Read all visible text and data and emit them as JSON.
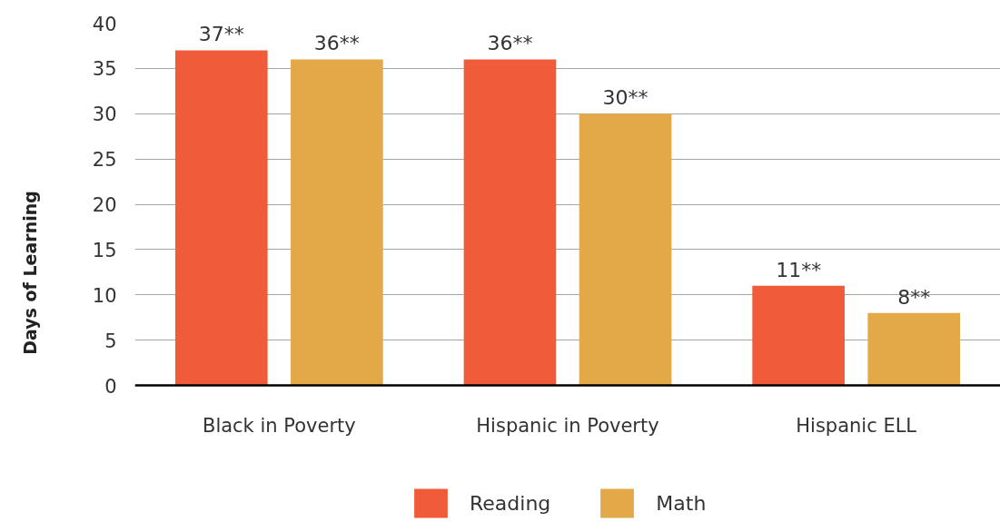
{
  "chart_data": {
    "type": "bar",
    "ylabel": "Days of Learning",
    "categories": [
      "Black in Poverty",
      "Hispanic in Poverty",
      "Hispanic ELL"
    ],
    "series": [
      {
        "name": "Reading",
        "color": "#f05b3a",
        "values": [
          37,
          36,
          11
        ],
        "value_labels": [
          "37**",
          "36**",
          "11**"
        ]
      },
      {
        "name": "Math",
        "color": "#e3a848",
        "values": [
          36,
          30,
          8
        ],
        "value_labels": [
          "36**",
          "30**",
          "8**"
        ]
      }
    ],
    "ylim": [
      0,
      40
    ],
    "yticks": [
      0,
      5,
      10,
      15,
      20,
      25,
      30,
      35,
      40
    ],
    "grid": "y",
    "legend": "bottom"
  }
}
